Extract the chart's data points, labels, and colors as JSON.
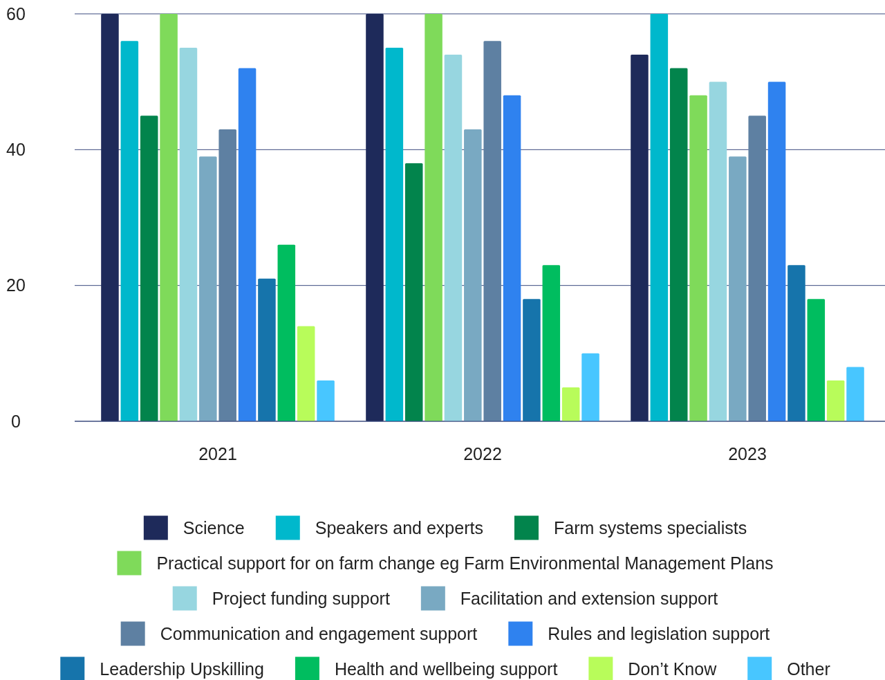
{
  "chart_data": {
    "type": "bar",
    "categories": [
      "2021",
      "2022",
      "2023"
    ],
    "series": [
      {
        "name": "Science",
        "color": "#1e2a5a",
        "values": [
          60,
          60,
          54
        ]
      },
      {
        "name": "Speakers and experts",
        "color": "#00b8cc",
        "values": [
          56,
          55,
          60
        ]
      },
      {
        "name": "Farm systems specialists",
        "color": "#02844c",
        "values": [
          45,
          38,
          52
        ]
      },
      {
        "name": "Practical support for on farm change eg Farm Environmental Management Plans",
        "color": "#7fda5a",
        "values": [
          60,
          60,
          48
        ]
      },
      {
        "name": "Project funding support",
        "color": "#97d6e0",
        "values": [
          55,
          54,
          50
        ]
      },
      {
        "name": "Facilitation and extension support",
        "color": "#79a9c2",
        "values": [
          39,
          43,
          39
        ]
      },
      {
        "name": "Communication and engagement support",
        "color": "#5e80a2",
        "values": [
          43,
          56,
          45
        ]
      },
      {
        "name": "Rules and legislation support",
        "color": "#2f82ef",
        "values": [
          52,
          48,
          50
        ]
      },
      {
        "name": "Leadership Upskilling",
        "color": "#1674ab",
        "values": [
          21,
          18,
          23
        ]
      },
      {
        "name": "Health and wellbeing support",
        "color": "#00bd5f",
        "values": [
          26,
          23,
          18
        ]
      },
      {
        "name": "Don’t Know",
        "color": "#b8fc5a",
        "values": [
          14,
          5,
          6
        ]
      },
      {
        "name": "Other",
        "color": "#48c6ff",
        "values": [
          6,
          10,
          8
        ]
      }
    ],
    "ylim": [
      0,
      60
    ],
    "yticks": [
      0,
      20,
      40,
      60
    ],
    "grid": "y",
    "legend": "bottom"
  }
}
